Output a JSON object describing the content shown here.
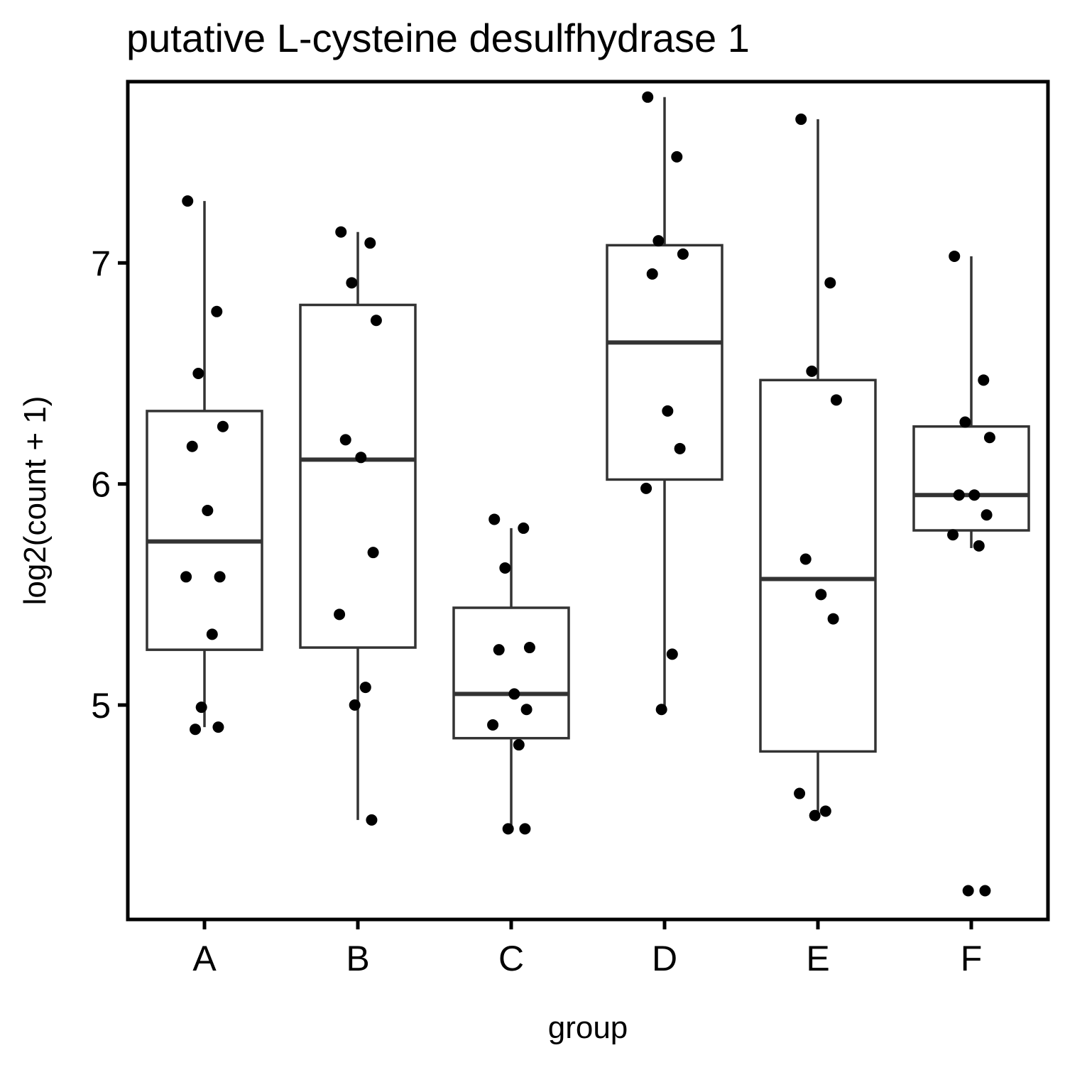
{
  "chart_data": {
    "type": "boxplot",
    "title": "putative L-cysteine desulfhydrase 1",
    "xlabel": "group",
    "ylabel": "log2(count + 1)",
    "ylim": [
      4.03,
      7.82
    ],
    "yticks": [
      5,
      6,
      7
    ],
    "grid": false,
    "legend": "none",
    "colors": {
      "box_stroke": "#333333",
      "points": "#000000",
      "panel_border": "#000000"
    },
    "categories": [
      "A",
      "B",
      "C",
      "D",
      "E",
      "F"
    ],
    "boxes": [
      {
        "group": "A",
        "whisker_low": 4.9,
        "q1": 5.25,
        "median": 5.74,
        "q3": 6.33,
        "whisker_high": 7.28
      },
      {
        "group": "B",
        "whisker_low": 4.48,
        "q1": 5.26,
        "median": 6.11,
        "q3": 6.81,
        "whisker_high": 7.14
      },
      {
        "group": "C",
        "whisker_low": 4.44,
        "q1": 4.85,
        "median": 5.05,
        "q3": 5.44,
        "whisker_high": 5.8
      },
      {
        "group": "D",
        "whisker_low": 4.98,
        "q1": 6.02,
        "median": 6.64,
        "q3": 7.08,
        "whisker_high": 7.75
      },
      {
        "group": "E",
        "whisker_low": 4.51,
        "q1": 4.79,
        "median": 5.57,
        "q3": 6.47,
        "whisker_high": 7.65
      },
      {
        "group": "F",
        "whisker_low": 5.71,
        "q1": 5.79,
        "median": 5.95,
        "q3": 6.26,
        "whisker_high": 7.03
      }
    ],
    "points": [
      {
        "group": "A",
        "values": [
          7.28,
          6.78,
          6.5,
          6.26,
          6.17,
          5.88,
          5.58,
          5.58,
          5.32,
          4.99,
          4.9,
          4.89
        ]
      },
      {
        "group": "B",
        "values": [
          7.14,
          7.09,
          6.91,
          6.74,
          6.2,
          6.12,
          5.69,
          5.41,
          5.08,
          5.0,
          4.48
        ]
      },
      {
        "group": "C",
        "values": [
          5.84,
          5.8,
          5.62,
          5.26,
          5.25,
          5.05,
          4.98,
          4.91,
          4.82,
          4.44,
          4.44
        ]
      },
      {
        "group": "D",
        "values": [
          7.75,
          7.48,
          7.1,
          7.04,
          6.95,
          6.33,
          6.16,
          5.98,
          5.23,
          4.98
        ]
      },
      {
        "group": "E",
        "values": [
          7.65,
          6.91,
          6.51,
          6.38,
          5.66,
          5.5,
          5.39,
          4.6,
          4.52,
          4.5
        ]
      },
      {
        "group": "F",
        "values": [
          7.03,
          6.47,
          6.28,
          6.21,
          5.95,
          5.95,
          5.86,
          5.77,
          5.72,
          4.16,
          4.16
        ]
      }
    ]
  }
}
